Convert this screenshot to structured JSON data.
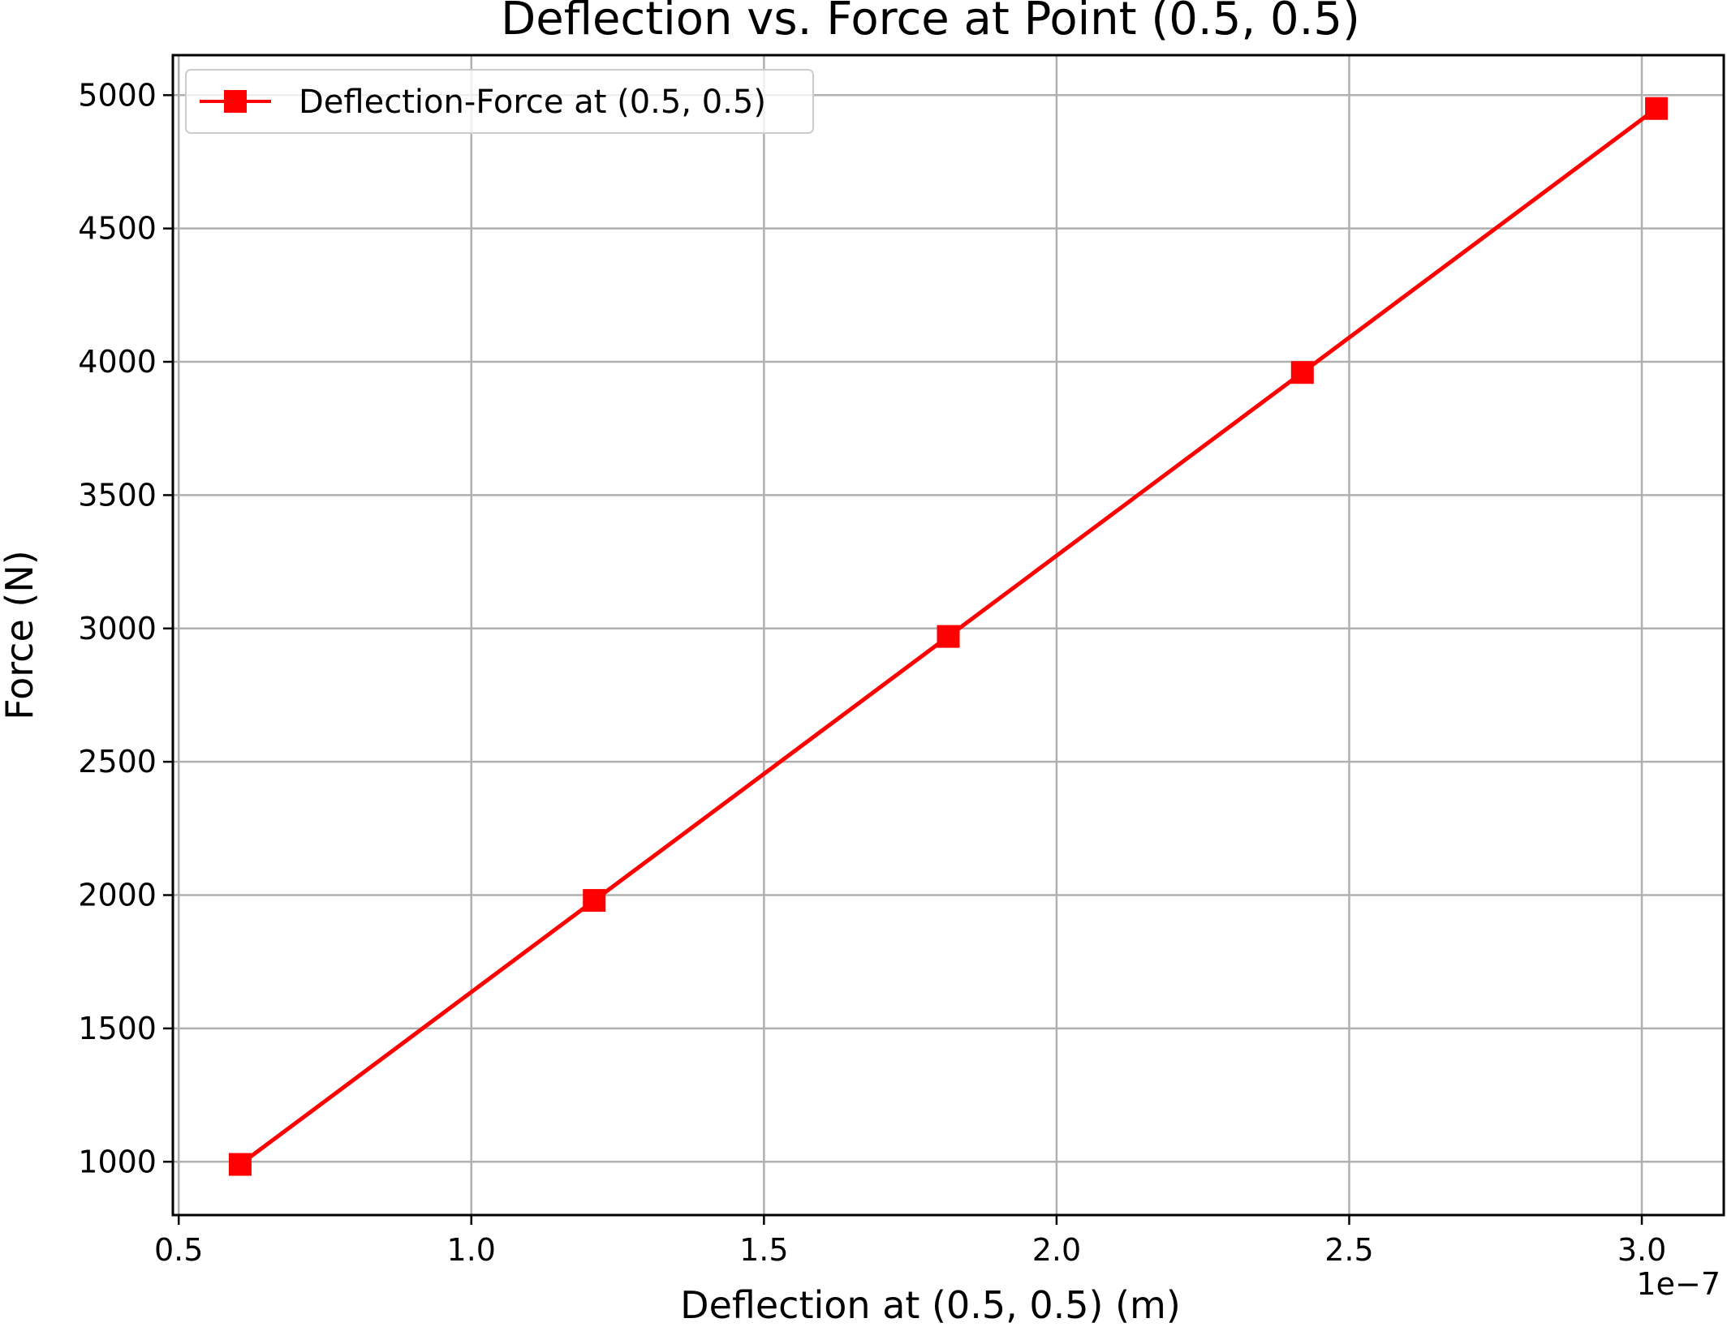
{
  "chart_data": {
    "type": "line",
    "title": "Deflection vs. Force at Point (0.5, 0.5)",
    "xlabel": "Deflection at (0.5, 0.5) (m)",
    "ylabel": "Force (N)",
    "x_offset_label": "1e−7",
    "x_scale": 1e-07,
    "xlim": [
      0.49,
      3.14
    ],
    "ylim": [
      800,
      5150
    ],
    "xticks": [
      0.5,
      1.0,
      1.5,
      2.0,
      2.5,
      3.0
    ],
    "xtick_labels": [
      "0.5",
      "1.0",
      "1.5",
      "2.0",
      "2.5",
      "3.0"
    ],
    "yticks": [
      1000,
      1500,
      2000,
      2500,
      3000,
      3500,
      4000,
      4500,
      5000
    ],
    "ytick_labels": [
      "1000",
      "1500",
      "2000",
      "2500",
      "3000",
      "3500",
      "4000",
      "4500",
      "5000"
    ],
    "grid": true,
    "legend_position": "top-left",
    "series": [
      {
        "name": "Deflection-Force at (0.5, 0.5)",
        "color": "#ff0000",
        "marker": "square",
        "x": [
          0.605,
          1.21,
          1.815,
          2.42,
          3.025
        ],
        "y": [
          990,
          1980,
          2970,
          3960,
          4950
        ]
      }
    ]
  }
}
